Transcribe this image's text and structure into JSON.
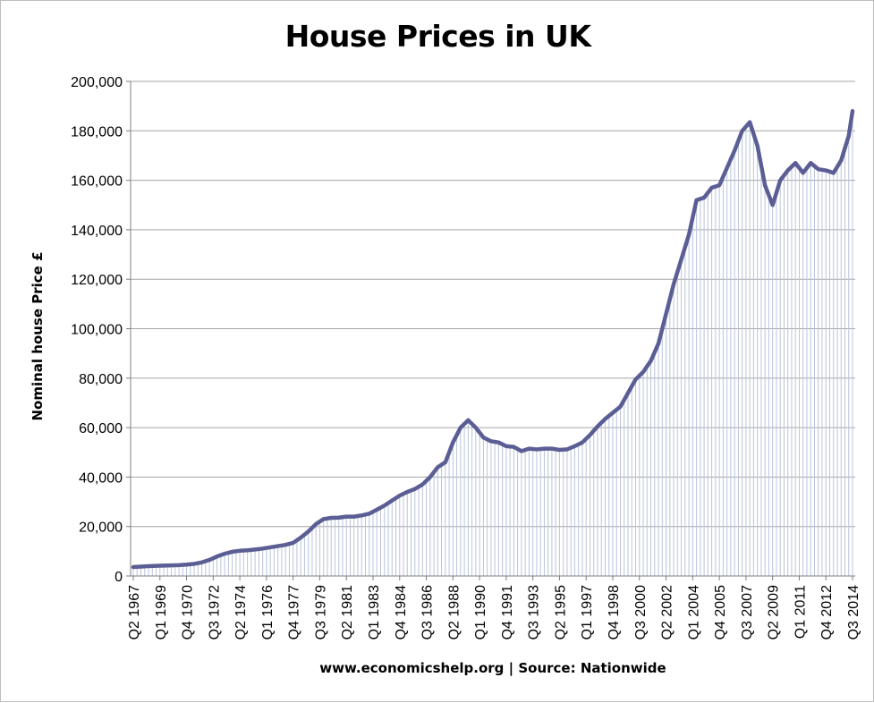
{
  "chart_data": {
    "type": "area",
    "title": "House Prices in UK",
    "xlabel": "www.economicshelp.org | Source: Nationwide",
    "ylabel": "Nominal house Price £",
    "ylim": [
      0,
      200000
    ],
    "y_ticks": [
      "0",
      "20,000",
      "40,000",
      "60,000",
      "80,000",
      "100,000",
      "120,000",
      "140,000",
      "160,000",
      "180,000",
      "200,000"
    ],
    "x_tick_labels": [
      "Q2 1967",
      "Q1 1969",
      "Q4 1970",
      "Q3 1972",
      "Q2 1974",
      "Q1 1976",
      "Q4 1977",
      "Q3 1979",
      "Q2 1981",
      "Q1 1983",
      "Q4 1984",
      "Q3 1986",
      "Q2 1988",
      "Q1 1990",
      "Q4 1991",
      "Q3 1993",
      "Q2 1995",
      "Q1 1997",
      "Q4 1998",
      "Q3 2000",
      "Q2 2002",
      "Q1 2004",
      "Q4 2005",
      "Q3 2007",
      "Q2 2009",
      "Q1 2011",
      "Q4 2012",
      "Q3 2014"
    ],
    "grid": true,
    "series": [
      {
        "color": "#5b5e94",
        "fill_color": "#b9c4dc",
        "x": [
          "Q2 1967",
          "Q4 1967",
          "Q2 1968",
          "Q4 1968",
          "Q2 1969",
          "Q4 1969",
          "Q2 1970",
          "Q4 1970",
          "Q2 1971",
          "Q4 1971",
          "Q2 1972",
          "Q4 1972",
          "Q2 1973",
          "Q4 1973",
          "Q2 1974",
          "Q4 1974",
          "Q2 1975",
          "Q4 1975",
          "Q2 1976",
          "Q4 1976",
          "Q2 1977",
          "Q4 1977",
          "Q2 1978",
          "Q4 1978",
          "Q2 1979",
          "Q4 1979",
          "Q2 1980",
          "Q4 1980",
          "Q2 1981",
          "Q4 1981",
          "Q2 1982",
          "Q4 1982",
          "Q2 1983",
          "Q4 1983",
          "Q2 1984",
          "Q4 1984",
          "Q2 1985",
          "Q4 1985",
          "Q2 1986",
          "Q4 1986",
          "Q2 1987",
          "Q4 1987",
          "Q2 1988",
          "Q4 1988",
          "Q2 1989",
          "Q4 1989",
          "Q2 1990",
          "Q4 1990",
          "Q2 1991",
          "Q4 1991",
          "Q2 1992",
          "Q4 1992",
          "Q2 1993",
          "Q4 1993",
          "Q2 1994",
          "Q4 1994",
          "Q2 1995",
          "Q4 1995",
          "Q2 1996",
          "Q4 1996",
          "Q2 1997",
          "Q4 1997",
          "Q2 1998",
          "Q4 1998",
          "Q2 1999",
          "Q4 1999",
          "Q2 2000",
          "Q4 2000",
          "Q2 2001",
          "Q4 2001",
          "Q2 2002",
          "Q4 2002",
          "Q2 2003",
          "Q4 2003",
          "Q2 2004",
          "Q4 2004",
          "Q2 2005",
          "Q4 2005",
          "Q2 2006",
          "Q4 2006",
          "Q2 2007",
          "Q4 2007",
          "Q2 2008",
          "Q4 2008",
          "Q2 2009",
          "Q4 2009",
          "Q2 2010",
          "Q4 2010",
          "Q2 2011",
          "Q4 2011",
          "Q2 2012",
          "Q4 2012",
          "Q2 2013",
          "Q4 2013",
          "Q2 2014",
          "Q3 2014"
        ],
        "values": [
          3600,
          3800,
          4000,
          4100,
          4200,
          4300,
          4400,
          4600,
          4900,
          5500,
          6500,
          7900,
          9000,
          9800,
          10200,
          10400,
          10700,
          11100,
          11600,
          12100,
          12600,
          13400,
          15500,
          18000,
          21000,
          23000,
          23500,
          23600,
          24000,
          24000,
          24500,
          25200,
          26800,
          28500,
          30500,
          32500,
          34000,
          35200,
          37000,
          40000,
          44000,
          46000,
          54000,
          60000,
          63000,
          60000,
          56000,
          54500,
          54000,
          52500,
          52200,
          50500,
          51500,
          51200,
          51500,
          51500,
          51000,
          51200,
          52500,
          54000,
          57000,
          60500,
          63500,
          66000,
          68500,
          74000,
          79500,
          82500,
          87000,
          94000,
          106000,
          118000,
          128000,
          138000,
          152000,
          153000,
          157000,
          158000,
          165000,
          172000,
          180000,
          183500,
          174000,
          158000,
          150000,
          160000,
          164000,
          167000,
          163000,
          167000,
          164500,
          164000,
          163000,
          168000,
          178000,
          188000
        ]
      }
    ]
  }
}
